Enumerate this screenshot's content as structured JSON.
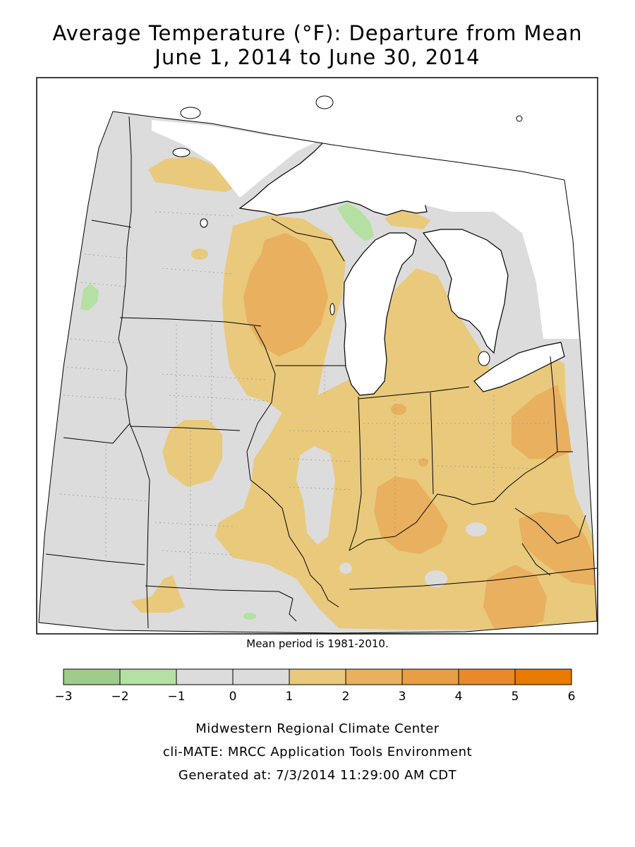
{
  "title": {
    "line1": "Average Temperature (°F): Departure from Mean",
    "line2": "June 1, 2014 to June 30, 2014"
  },
  "mean_note": "Mean period is 1981-2010.",
  "legend": {
    "colors": [
      "#9fcb8b",
      "#b4e0a3",
      "#dcdcdc",
      "#dcdcdc",
      "#e9c97c",
      "#e8b05f",
      "#e89e45",
      "#e88a27",
      "#e77a00"
    ],
    "tick_labels": [
      "−3",
      "−2",
      "−1",
      "0",
      "1",
      "2",
      "3",
      "4",
      "5",
      "6"
    ]
  },
  "footer": {
    "line1": "Midwestern Regional Climate Center",
    "line2": "cli-MATE: MRCC Application Tools Environment",
    "line3": "Generated at: 7/3/2014 11:29:00 AM CDT"
  },
  "map": {
    "background_color": "#dcdcdc",
    "water_color": "#ffffff",
    "shading_classes": {
      "cool_1_2": "#b4e0a3",
      "warm_1_2": "#e9c97c",
      "warm_2_3": "#e8b05f"
    }
  }
}
